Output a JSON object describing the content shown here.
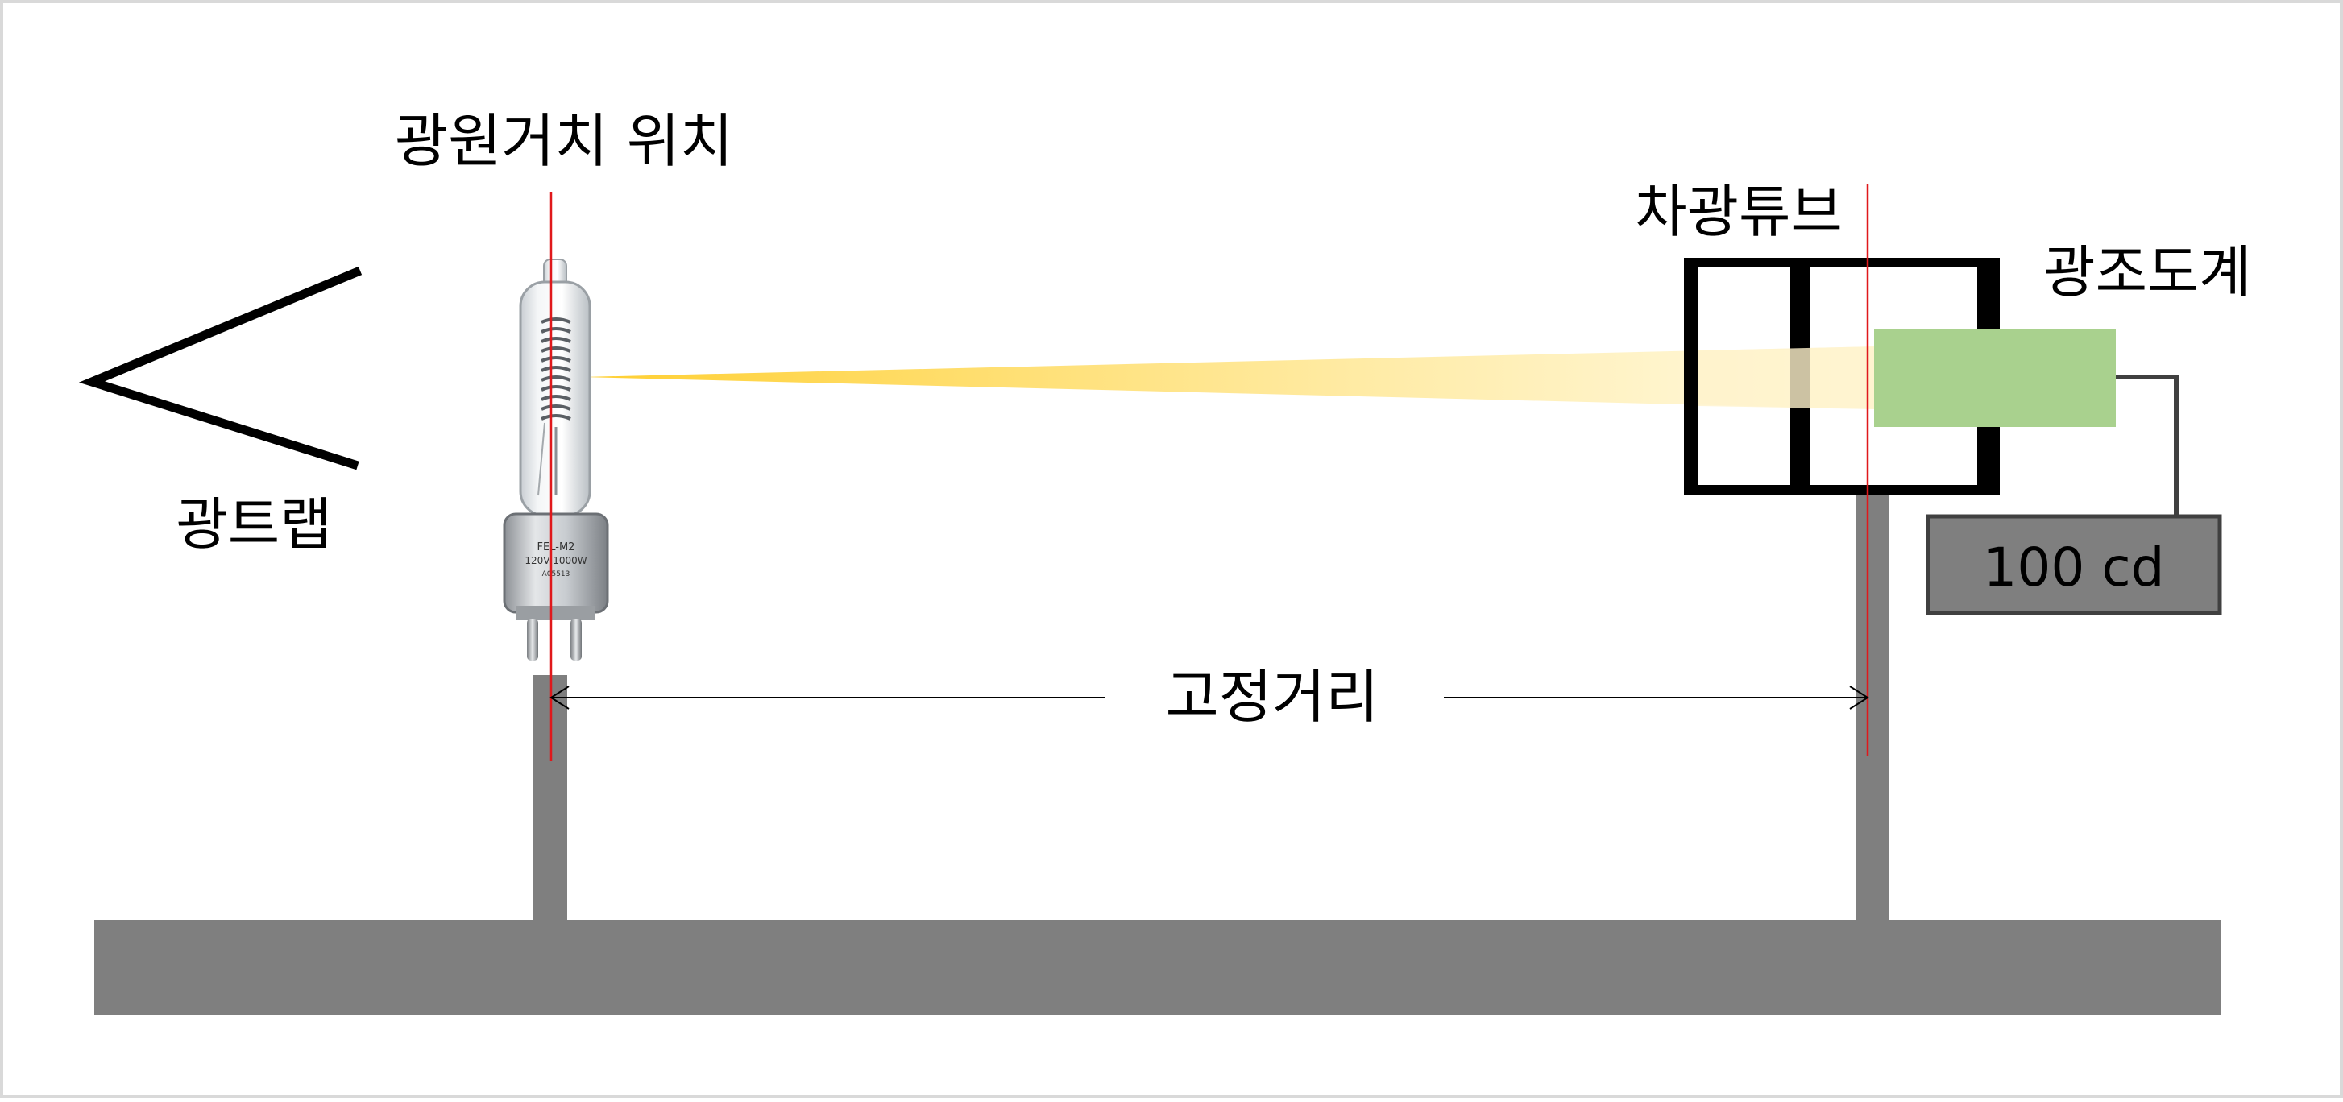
{
  "labels": {
    "light_trap": "광트랩",
    "lamp_mount_position": "광원거치 위치",
    "shading_tube": "차광튜브",
    "photometer": "광조도계",
    "fixed_distance": "고정거리",
    "readout": "100 cd"
  },
  "lamp_print": {
    "line1": "FEL-M2",
    "line2": "120V 1000W",
    "line3": "A05513"
  },
  "colors": {
    "rail": "#7f7f7f",
    "marker_line": "#e0181b",
    "photometer": "#a9d18e",
    "beam": "#ffd84a",
    "frame": "#000000",
    "readout_box": "#7f7f7f",
    "border": "#d9d9d9"
  }
}
